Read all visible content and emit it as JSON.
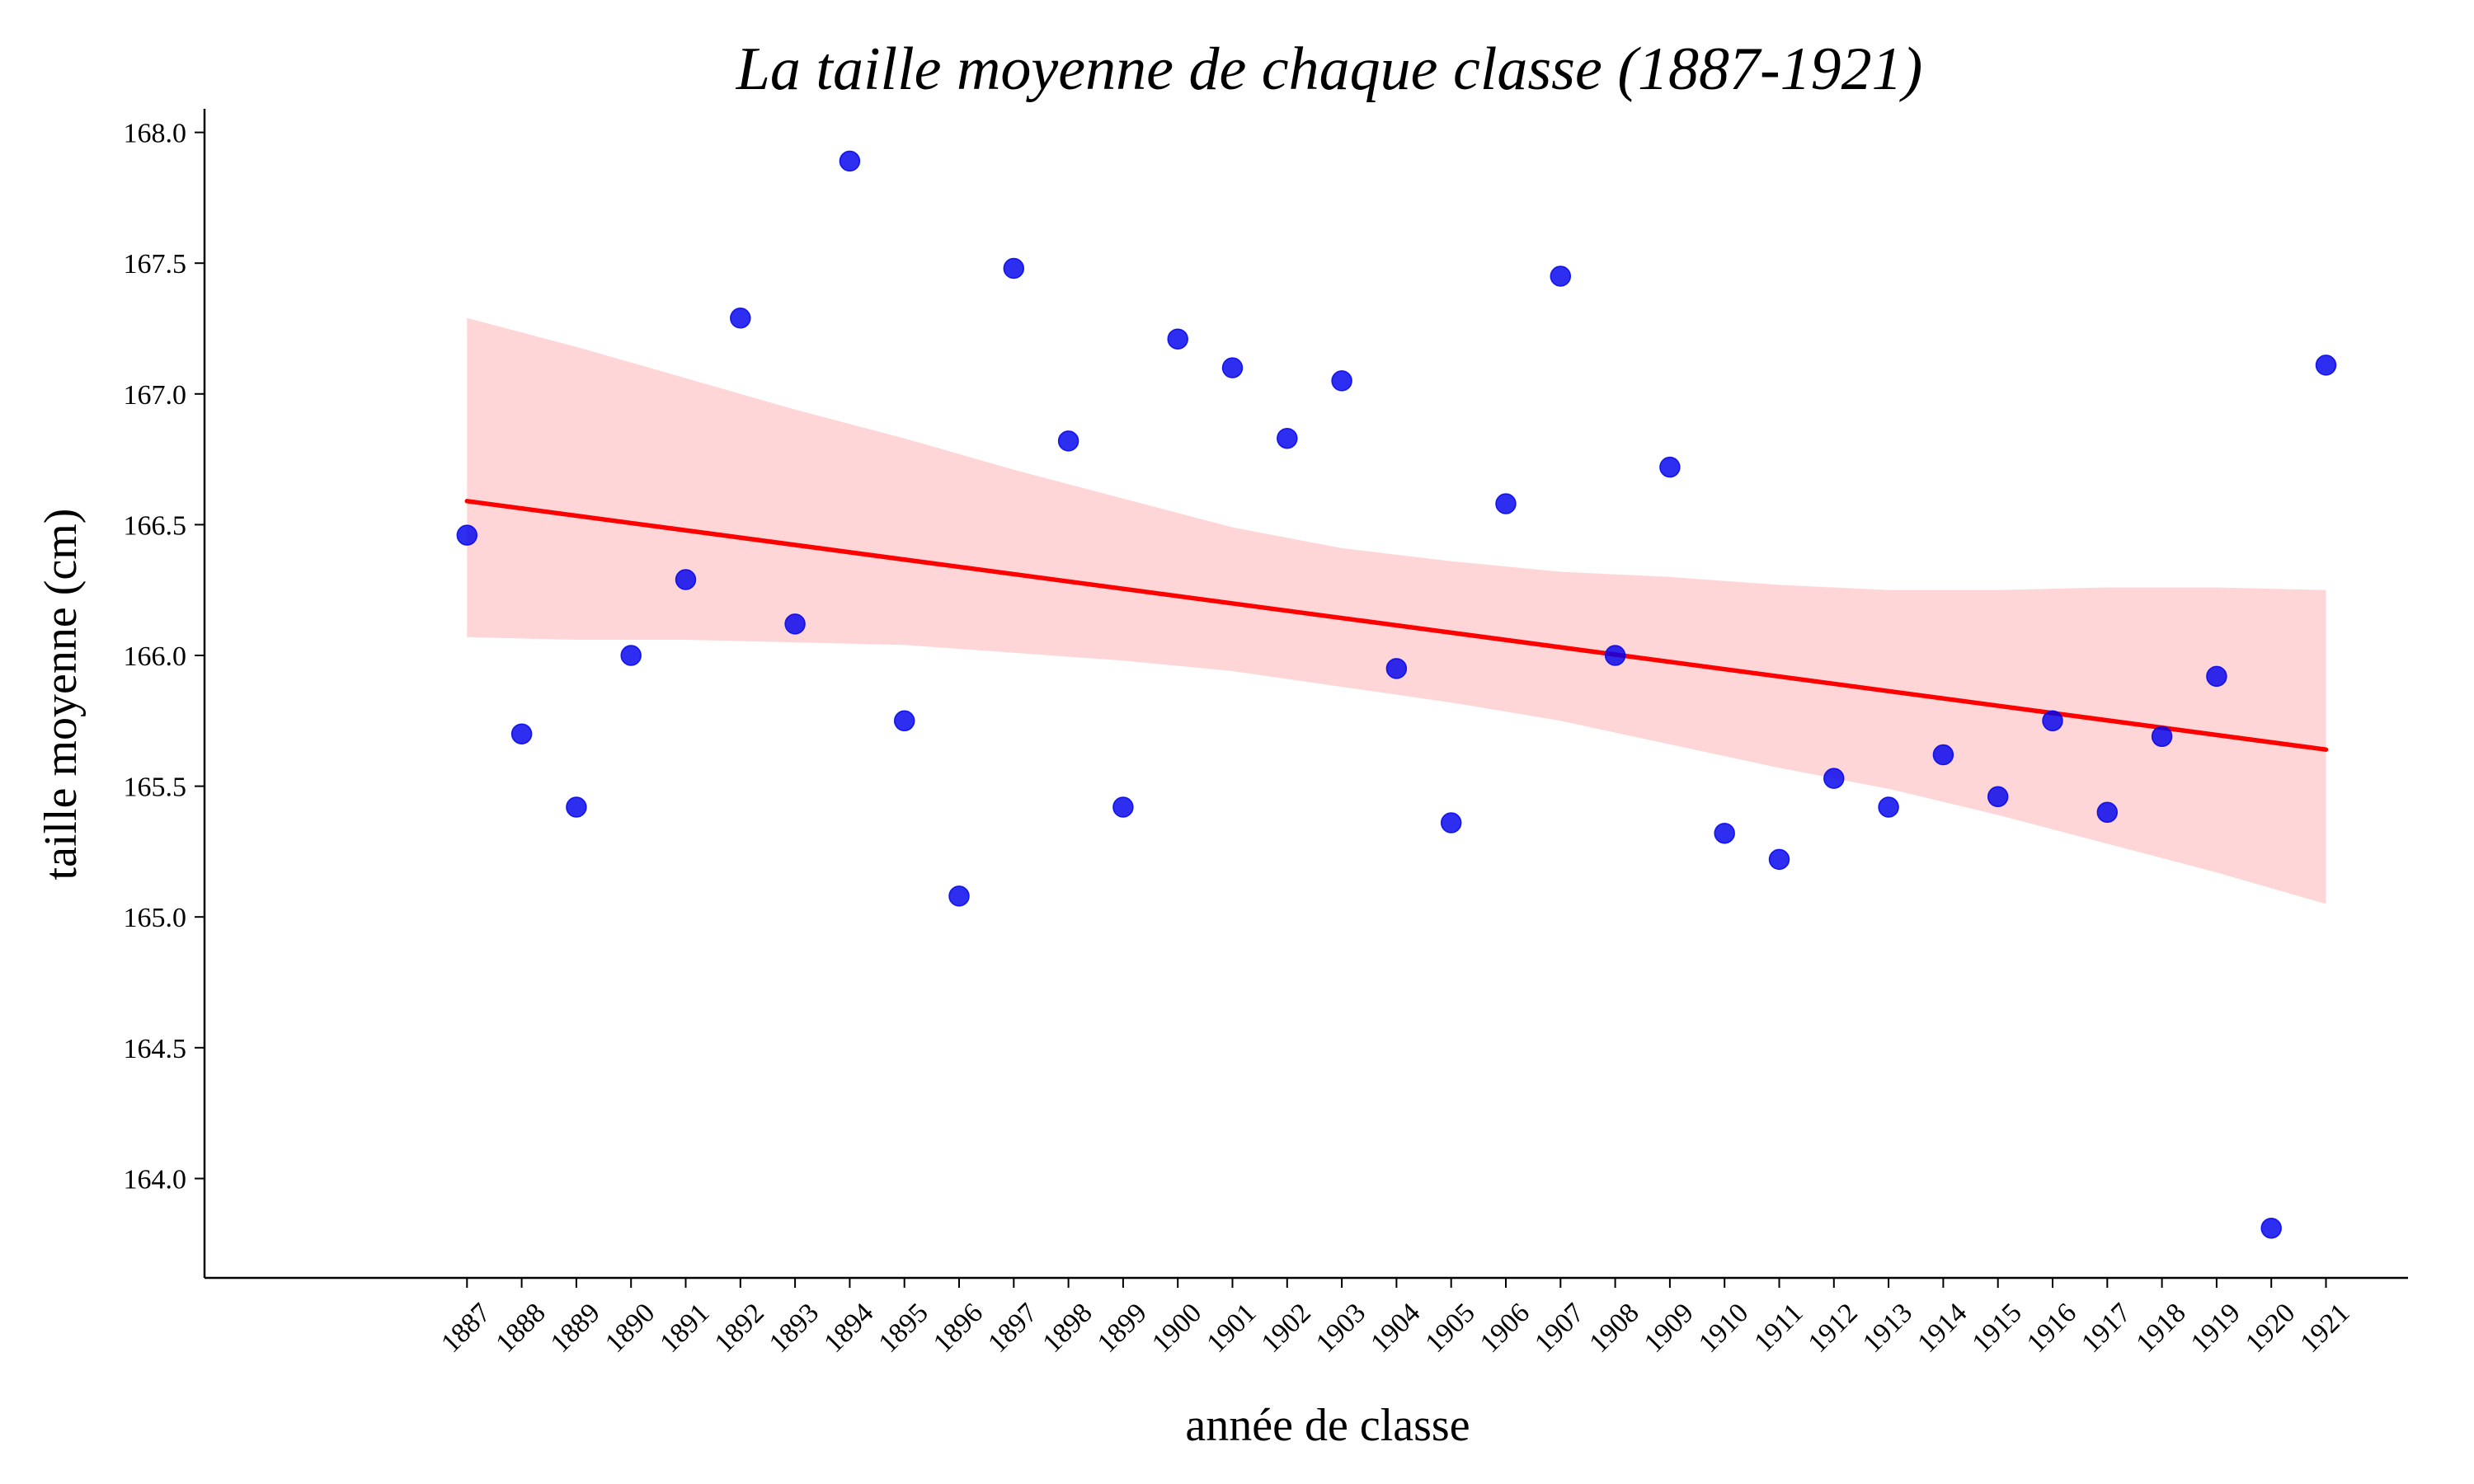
{
  "chart_data": {
    "type": "scatter",
    "title": "La taille moyenne de chaque classe (1887-1921)",
    "xlabel": "année de classe",
    "ylabel": "taille moyenne (cm)",
    "x": [
      1887,
      1888,
      1889,
      1890,
      1891,
      1892,
      1893,
      1894,
      1895,
      1896,
      1897,
      1898,
      1899,
      1900,
      1901,
      1902,
      1903,
      1904,
      1905,
      1906,
      1907,
      1908,
      1909,
      1910,
      1911,
      1912,
      1913,
      1914,
      1915,
      1916,
      1917,
      1918,
      1919,
      1920,
      1921
    ],
    "y": [
      166.46,
      165.7,
      165.42,
      166.0,
      166.29,
      167.29,
      166.12,
      167.89,
      165.75,
      165.08,
      167.48,
      166.82,
      165.42,
      167.21,
      167.1,
      166.83,
      167.05,
      165.95,
      165.36,
      166.58,
      167.45,
      166.0,
      166.72,
      165.32,
      165.22,
      165.53,
      165.42,
      165.62,
      165.46,
      165.75,
      165.4,
      165.69,
      165.92,
      163.81,
      167.11
    ],
    "xticks": [
      "1887",
      "1888",
      "1889",
      "1890",
      "1891",
      "1892",
      "1893",
      "1894",
      "1895",
      "1896",
      "1897",
      "1898",
      "1899",
      "1900",
      "1901",
      "1902",
      "1903",
      "1904",
      "1905",
      "1906",
      "1907",
      "1908",
      "1909",
      "1910",
      "1911",
      "1912",
      "1913",
      "1914",
      "1915",
      "1916",
      "1917",
      "1918",
      "1919",
      "1920",
      "1921"
    ],
    "yticks": [
      "164.0",
      "164.5",
      "165.0",
      "165.5",
      "166.0",
      "166.5",
      "167.0",
      "167.5",
      "168.0"
    ],
    "xlim": [
      1882.2,
      1922.5
    ],
    "ylim": [
      163.62,
      168.09
    ],
    "regression": {
      "x": [
        1887,
        1921
      ],
      "y": [
        166.59,
        165.64
      ]
    },
    "confidence_band": {
      "x": [
        1887,
        1889,
        1891,
        1893,
        1895,
        1897,
        1899,
        1901,
        1903,
        1905,
        1907,
        1909,
        1911,
        1913,
        1915,
        1917,
        1919,
        1921
      ],
      "upper": [
        167.29,
        167.18,
        167.06,
        166.94,
        166.83,
        166.71,
        166.6,
        166.49,
        166.41,
        166.36,
        166.32,
        166.3,
        166.27,
        166.25,
        166.25,
        166.26,
        166.26,
        166.25
      ],
      "lower": [
        166.07,
        166.06,
        166.06,
        166.05,
        166.04,
        166.01,
        165.98,
        165.94,
        165.88,
        165.82,
        165.75,
        165.66,
        165.57,
        165.49,
        165.39,
        165.28,
        165.17,
        165.05
      ]
    },
    "colors": {
      "points": "#0000ee",
      "line": "#ff0000",
      "band": "#ffd6d8",
      "axes": "#000000"
    },
    "grid": false,
    "legend": "none"
  }
}
